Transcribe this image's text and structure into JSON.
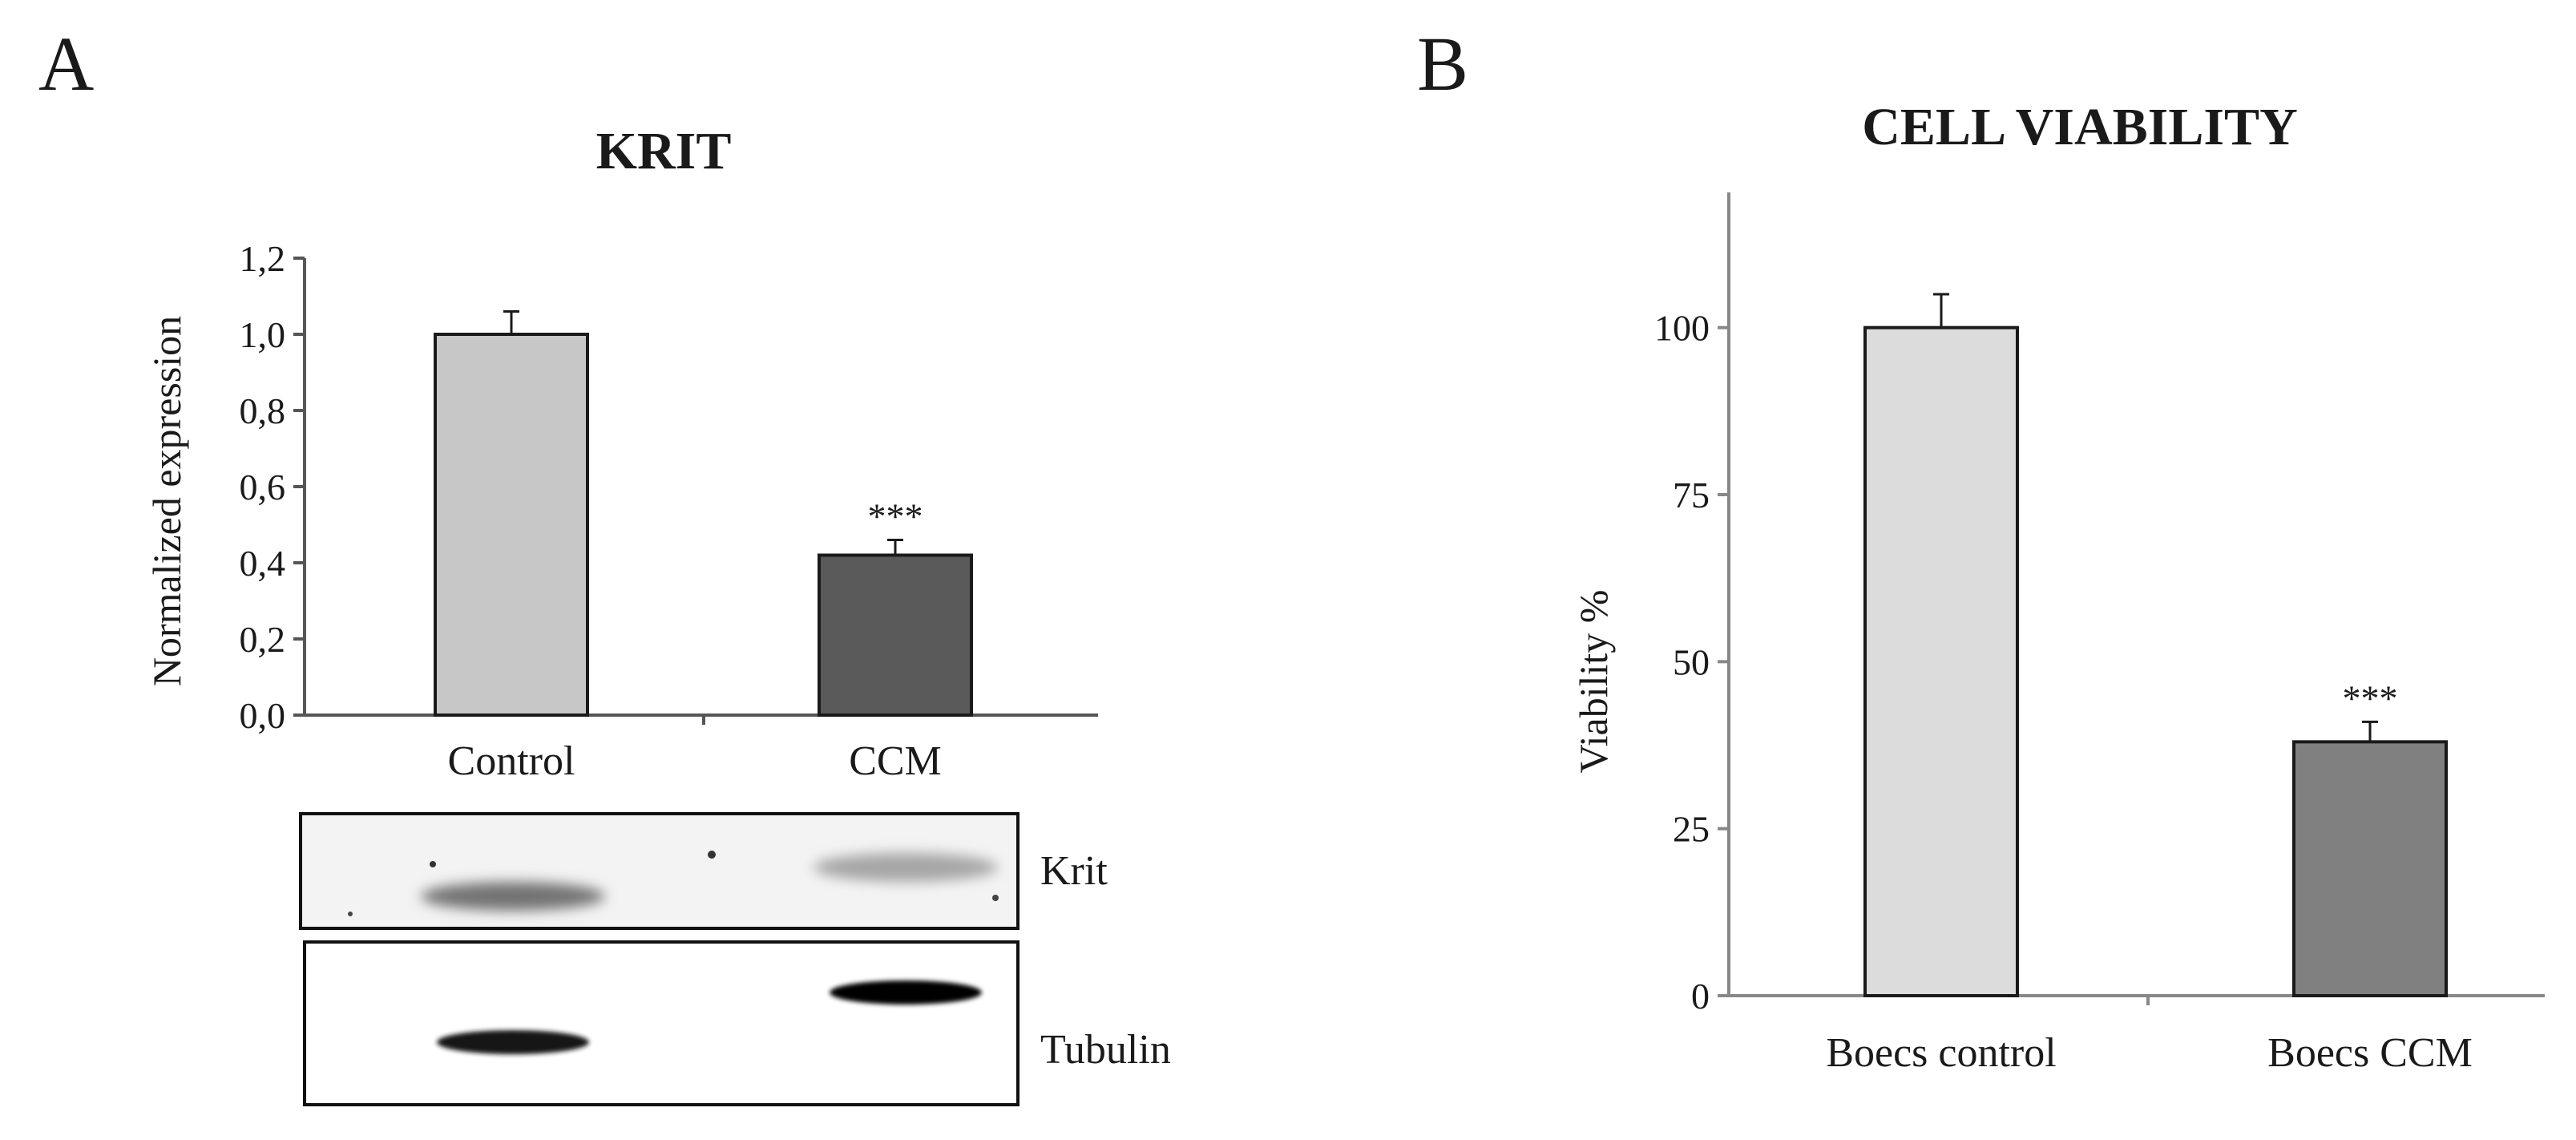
{
  "panels": [
    {
      "letter": "A",
      "chart_data": {
        "type": "bar",
        "title": "KRIT",
        "xlabel": "",
        "ylabel": "Normalized expression",
        "categories": [
          "Control",
          "CCM"
        ],
        "values": [
          1.0,
          0.42
        ],
        "errors": [
          0.06,
          0.04
        ],
        "ylim": [
          0,
          1.2
        ],
        "yticks": [
          "0,0",
          "0,2",
          "0,4",
          "0,6",
          "0,8",
          "1,0",
          "1,2"
        ],
        "annotations": [
          "",
          "***"
        ],
        "colors": [
          "#c7c7c7",
          "#5a5a5a"
        ]
      },
      "blot": {
        "labels": [
          "Krit",
          "Tubulin"
        ],
        "bands": [
          {
            "row": "Krit",
            "lane": "Control",
            "intensity": 0.55
          },
          {
            "row": "Krit",
            "lane": "CCM",
            "intensity": 0.35
          },
          {
            "row": "Tubulin",
            "lane": "Control",
            "intensity": 0.9
          },
          {
            "row": "Tubulin",
            "lane": "CCM",
            "intensity": 1.0
          }
        ]
      }
    },
    {
      "letter": "B",
      "chart_data": {
        "type": "bar",
        "title": "CELL VIABILITY",
        "xlabel": "",
        "ylabel": "Viability %",
        "categories": [
          "Boecs control",
          "Boecs CCM"
        ],
        "values": [
          100,
          38
        ],
        "errors": [
          5,
          3
        ],
        "ylim": [
          0,
          120
        ],
        "yticks": [
          "0",
          "25",
          "50",
          "75",
          "100"
        ],
        "annotations": [
          "",
          "***"
        ],
        "colors": [
          "#dcdcdc",
          "#808080"
        ]
      }
    }
  ]
}
